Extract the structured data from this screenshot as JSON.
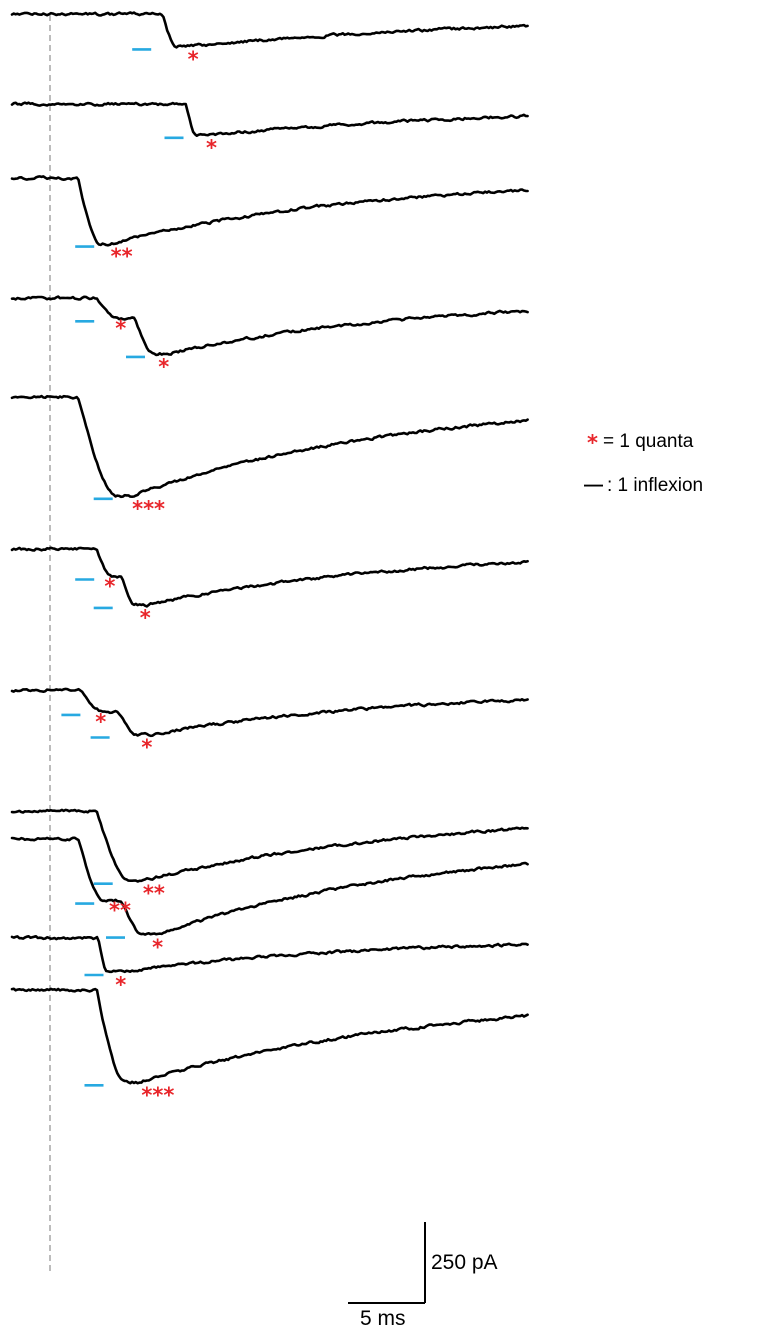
{
  "colors": {
    "trace": "#000000",
    "quanta_marker": "#e8262b",
    "inflexion_marker": "#27a9e1",
    "onset_line": "#a6a6a6"
  },
  "legend": {
    "quanta_symbol": "*",
    "quanta_label": "= 1 quanta",
    "inflexion_symbol": "—",
    "inflexion_label": ": 1 inflexion"
  },
  "scale_bar": {
    "amplitude_label": "250 pA",
    "time_label": "5 ms"
  },
  "traces": [
    {
      "name": "trace-1",
      "shape": {
        "baseline": 0,
        "peak": 0.4,
        "onset": 9.8,
        "rise_end": 10.7,
        "tau": 22
      },
      "inflexions": [
        8.0
      ],
      "quanta_markers": [
        {
          "text": "*",
          "t": 11.4
        }
      ]
    },
    {
      "name": "trace-2",
      "shape": {
        "baseline": 0,
        "peak": 0.38,
        "onset": 11.3,
        "rise_end": 12.0,
        "tau": 22
      },
      "inflexions": [
        10.1
      ],
      "quanta_markers": [
        {
          "text": "*",
          "t": 12.6
        }
      ]
    },
    {
      "name": "trace-3",
      "shape": {
        "baseline": 0,
        "peak": 0.81,
        "onset": 4.3,
        "rise_end": 5.8,
        "tau": 16
      },
      "inflexions": [
        4.3
      ],
      "quanta_markers": [
        {
          "text": "**",
          "t": 6.4
        }
      ]
    },
    {
      "name": "trace-4",
      "shape": {
        "baseline": 0,
        "peak": 0.69,
        "onset": 5.5,
        "rise_end": 9.3,
        "tau": 16,
        "plateau_level": 0.25
      },
      "inflexions": [
        4.3,
        7.6
      ],
      "quanta_markers": [
        {
          "text": "*",
          "t": 6.7
        },
        {
          "text": "*",
          "t": 9.5
        }
      ]
    },
    {
      "name": "trace-5",
      "shape": {
        "baseline": 0,
        "peak": 1.22,
        "onset": 4.3,
        "rise_end": 6.9,
        "tau": 18
      },
      "inflexions": [
        5.5
      ],
      "quanta_markers": [
        {
          "text": "***",
          "t": 7.8
        }
      ]
    },
    {
      "name": "trace-6",
      "shape": {
        "baseline": 0,
        "peak": 0.69,
        "onset": 5.5,
        "rise_end": 8.0,
        "tau": 17,
        "plateau_level": 0.34
      },
      "inflexions": [
        4.3,
        5.5
      ],
      "quanta_markers": [
        {
          "text": "*",
          "t": 6.0
        },
        {
          "text": "*",
          "t": 8.3
        }
      ]
    },
    {
      "name": "trace-7",
      "shape": {
        "baseline": 0,
        "peak": 0.55,
        "onset": 4.5,
        "rise_end": 8.2,
        "tau": 16,
        "plateau_level": 0.27
      },
      "inflexions": [
        3.4,
        5.3
      ],
      "quanta_markers": [
        {
          "text": "*",
          "t": 5.4
        },
        {
          "text": "*",
          "t": 8.4
        }
      ]
    },
    {
      "name": "trace-8",
      "shape": {
        "baseline": 0,
        "peak": 0.86,
        "onset": 5.5,
        "rise_end": 7.7,
        "tau": 18
      },
      "inflexions": [
        5.5
      ],
      "quanta_markers": [
        {
          "text": "**",
          "t": 8.5
        }
      ]
    },
    {
      "name": "trace-9",
      "shape": {
        "baseline": 0,
        "peak": 0.42,
        "onset": 5.6,
        "rise_end": 6.2,
        "tau": 16
      },
      "inflexions": [
        4.9
      ],
      "quanta_markers": [
        {
          "text": "*",
          "t": 6.7
        }
      ]
    },
    {
      "name": "trace-10",
      "shape": {
        "baseline": 0,
        "peak": 1.18,
        "onset": 4.3,
        "rise_end": 8.6,
        "tau": 18,
        "plateau_level": 0.76
      },
      "inflexions": [
        4.3,
        6.3
      ],
      "quanta_markers": [
        {
          "text": "**",
          "t": 6.3
        },
        {
          "text": "*",
          "t": 9.1
        }
      ]
    },
    {
      "name": "trace-11",
      "shape": {
        "baseline": 0,
        "peak": 1.14,
        "onset": 5.5,
        "rise_end": 7.4,
        "tau": 20
      },
      "inflexions": [
        4.9
      ],
      "quanta_markers": [
        {
          "text": "***",
          "t": 8.4
        }
      ]
    }
  ]
}
